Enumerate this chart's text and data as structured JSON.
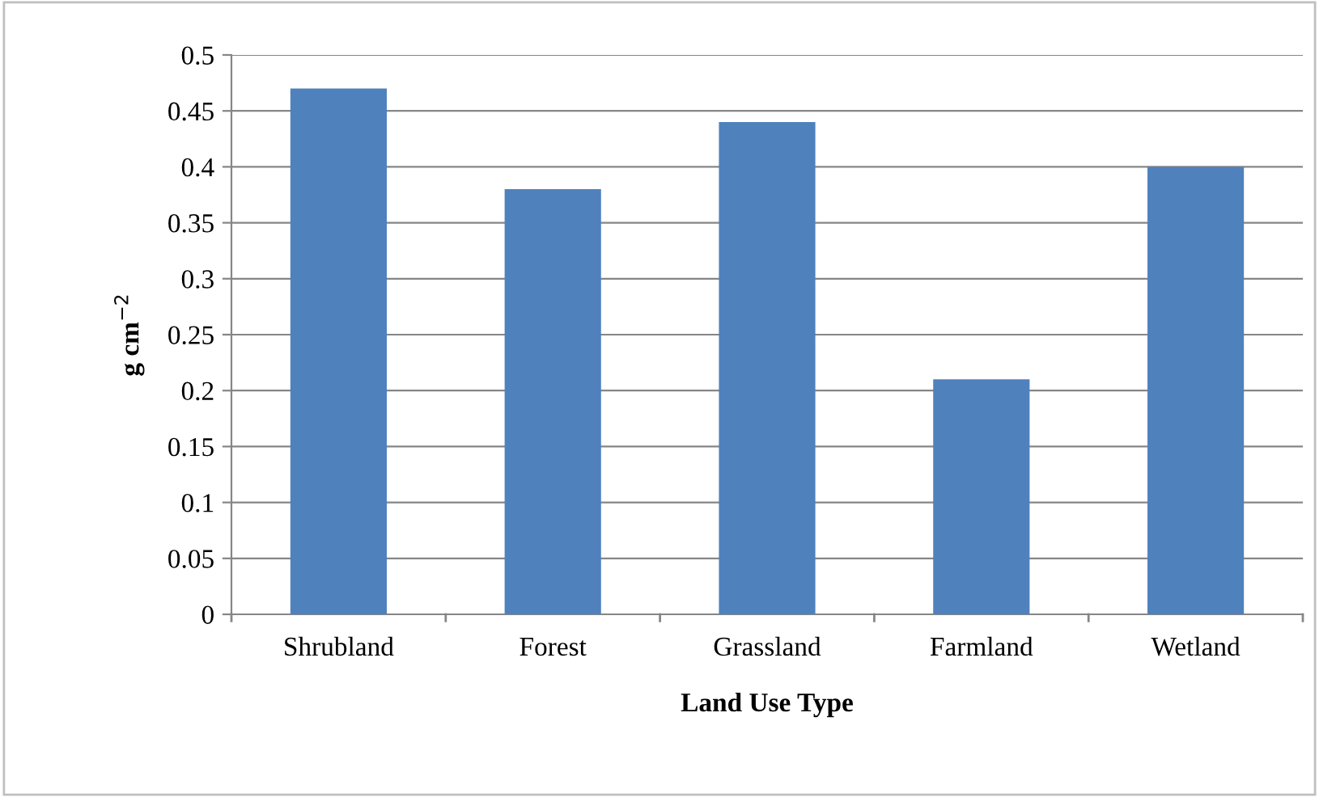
{
  "chart_data": {
    "type": "bar",
    "xlabel": "Land Use Type",
    "ylabel": "g cm$^{−2}$",
    "categories": [
      "Shrubland",
      "Forest",
      "Grassland",
      "Farmland",
      "Wetland"
    ],
    "values": [
      0.47,
      0.38,
      0.44,
      0.21,
      0.4
    ],
    "color": "#4f81bd",
    "ylim": [
      0,
      0.5
    ],
    "yticks": [
      0,
      0.05,
      0.1,
      0.15,
      0.2,
      0.25,
      0.3,
      0.35,
      0.4,
      0.45,
      0.5
    ],
    "grid": "y",
    "legend": false
  }
}
